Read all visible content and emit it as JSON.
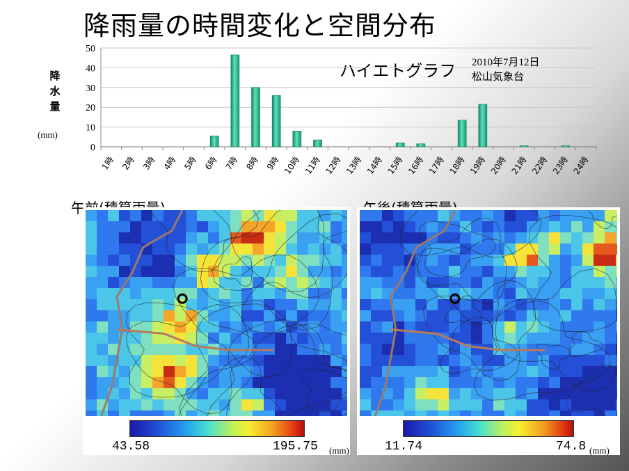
{
  "page": {
    "title": "降雨量の時間変化と空間分布"
  },
  "chart_data": {
    "type": "bar",
    "title": "ハイエトグラフ",
    "subtitle_lines": [
      "2010年7月12日",
      "松山気象台"
    ],
    "ylabel": "降水量",
    "yunit": "(mm)",
    "ylim": [
      0,
      50
    ],
    "yticks": [
      0,
      10,
      20,
      30,
      40,
      50
    ],
    "grid": true,
    "bar_color": "#2fc29a",
    "categories": [
      "1時",
      "2時",
      "3時",
      "4時",
      "5時",
      "6時",
      "7時",
      "8時",
      "9時",
      "10時",
      "11時",
      "12時",
      "13時",
      "14時",
      "15時",
      "16時",
      "17時",
      "18時",
      "19時",
      "20時",
      "21時",
      "22時",
      "23時",
      "24時"
    ],
    "values": [
      0,
      0,
      0,
      0,
      0,
      5.5,
      46.5,
      30,
      26,
      8,
      3.5,
      0,
      0,
      0,
      2,
      1.5,
      0,
      13.5,
      21.5,
      0,
      0.5,
      0,
      0.5,
      0
    ]
  },
  "maps": {
    "am": {
      "label": "午前(積算雨量)",
      "min": "43.58",
      "max": "195.75",
      "unit": "(mm)"
    },
    "pm": {
      "label": "午後(積算雨量)",
      "min": "11.74",
      "max": "74.8",
      "unit": "(mm)"
    }
  }
}
